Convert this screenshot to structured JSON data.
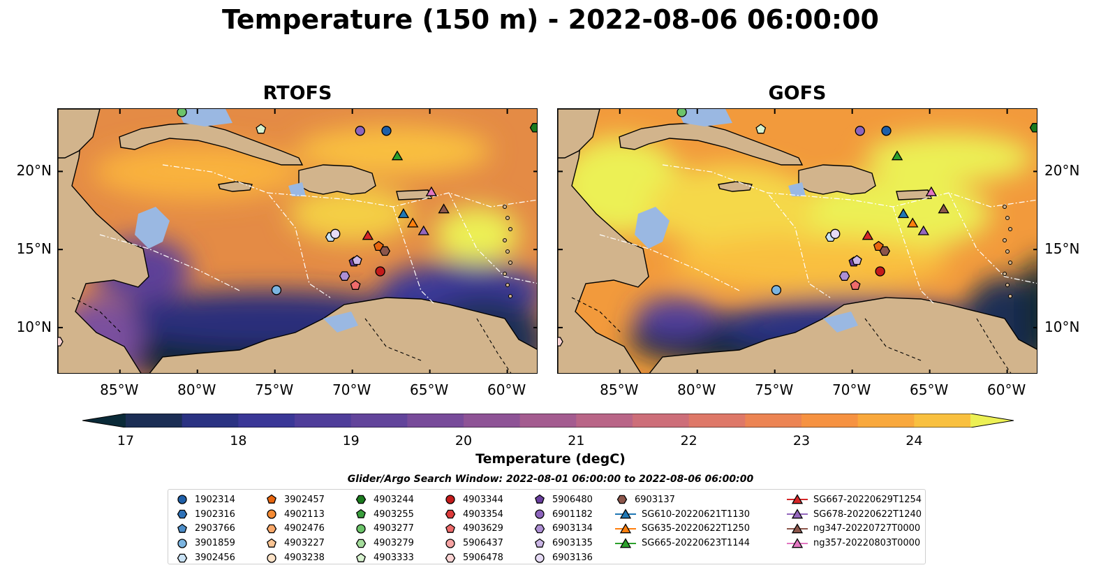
{
  "title": "Temperature (150 m) - 2022-08-06 06:00:00",
  "panels": [
    {
      "title": "RTOFS"
    },
    {
      "title": "GOFS"
    }
  ],
  "map": {
    "lon_range": [
      -89,
      -58
    ],
    "lat_range": [
      7,
      24
    ],
    "lon_ticks": [
      -85,
      -80,
      -75,
      -70,
      -65,
      -60
    ],
    "lon_labels": [
      "85°W",
      "80°W",
      "75°W",
      "70°W",
      "65°W",
      "60°W"
    ],
    "lat_ticks": [
      10,
      15,
      20
    ],
    "lat_labels": [
      "10°N",
      "15°N",
      "20°N"
    ],
    "colors": {
      "land": "#d2b48c",
      "shallow": "#9ab8e2",
      "ocean_warm": "#f7a13a",
      "ocean_cold": "#0b2533",
      "ocean_hot": "#e9f353"
    }
  },
  "colorbar": {
    "label": "Temperature (degC)",
    "min": 17,
    "max": 24.5,
    "step": 0.5,
    "ticks": [
      17,
      18,
      19,
      20,
      21,
      22,
      23,
      24
    ],
    "tick_labels": [
      "17",
      "18",
      "19",
      "20",
      "21",
      "22",
      "23",
      "24"
    ],
    "colors": [
      "#0a2a38",
      "#1b2e55",
      "#2a3282",
      "#3a3797",
      "#4f3d9a",
      "#62449b",
      "#784b9a",
      "#8e5396",
      "#a45c90",
      "#b96587",
      "#cd6e79",
      "#de7868",
      "#ec8453",
      "#f69241",
      "#f9a83c",
      "#f9c03f",
      "#f5d84a",
      "#ecf055"
    ]
  },
  "search_window": "Glider/Argo Search Window: 2022-08-01 06:00:00 to 2022-08-06 06:00:00",
  "legend": {
    "columns": [
      [
        {
          "label": "1902314",
          "marker": "circle",
          "color": "#1f5fa8"
        },
        {
          "label": "1902316",
          "marker": "hexagon",
          "color": "#2f72b8"
        },
        {
          "label": "2903766",
          "marker": "pentagon",
          "color": "#4d8ec9"
        },
        {
          "label": "3901859",
          "marker": "circle",
          "color": "#7bb4e0"
        },
        {
          "label": "3902456",
          "marker": "hexagon",
          "color": "#c9e2f5"
        }
      ],
      [
        {
          "label": "3902457",
          "marker": "pentagon",
          "color": "#e8660f"
        },
        {
          "label": "4902113",
          "marker": "circle",
          "color": "#f58b34"
        },
        {
          "label": "4902476",
          "marker": "hexagon",
          "color": "#f9a86a"
        },
        {
          "label": "4903227",
          "marker": "pentagon",
          "color": "#fbc594"
        },
        {
          "label": "4903238",
          "marker": "circle",
          "color": "#fde3c8"
        }
      ],
      [
        {
          "label": "4903244",
          "marker": "hexagon",
          "color": "#1b7a1e"
        },
        {
          "label": "4903255",
          "marker": "pentagon",
          "color": "#3a9f3d"
        },
        {
          "label": "4903277",
          "marker": "circle",
          "color": "#6cc46a"
        },
        {
          "label": "4903279",
          "marker": "hexagon",
          "color": "#a5dd9c"
        },
        {
          "label": "4903333",
          "marker": "pentagon",
          "color": "#d7f2cf"
        }
      ],
      [
        {
          "label": "4903344",
          "marker": "circle",
          "color": "#c41b1b"
        },
        {
          "label": "4903354",
          "marker": "hexagon",
          "color": "#dc3b3b"
        },
        {
          "label": "4903629",
          "marker": "pentagon",
          "color": "#ee6b6b"
        },
        {
          "label": "5906437",
          "marker": "circle",
          "color": "#f6a3a3"
        },
        {
          "label": "5906478",
          "marker": "hexagon",
          "color": "#fbd3d3"
        }
      ],
      [
        {
          "label": "5906480",
          "marker": "pentagon",
          "color": "#6a3f9e"
        },
        {
          "label": "6901182",
          "marker": "circle",
          "color": "#8d64bd"
        },
        {
          "label": "6903134",
          "marker": "hexagon",
          "color": "#ad8fd3"
        },
        {
          "label": "6903135",
          "marker": "pentagon",
          "color": "#cbb6e6"
        },
        {
          "label": "6903136",
          "marker": "circle",
          "color": "#e6dbf5"
        }
      ],
      [
        {
          "label": "6903137",
          "marker": "hexagon",
          "color": "#8c564b"
        },
        {
          "label": "SG610-20220621T1130",
          "marker": "triangle-line",
          "color": "#1f77b4"
        },
        {
          "label": "SG635-20220622T1250",
          "marker": "triangle-line",
          "color": "#ff7f0e"
        },
        {
          "label": "SG665-20220623T1144",
          "marker": "triangle-line",
          "color": "#2ca02c"
        }
      ],
      [
        {
          "label": "SG667-20220629T1254",
          "marker": "triangle-line",
          "color": "#d62728"
        },
        {
          "label": "SG678-20220622T1240",
          "marker": "triangle-line",
          "color": "#9467bd"
        },
        {
          "label": "ng347-20220727T0000",
          "marker": "triangle-line",
          "color": "#8c564b"
        },
        {
          "label": "ng357-20220803T0000",
          "marker": "triangle-line",
          "color": "#e377c2"
        }
      ]
    ]
  },
  "points": [
    {
      "label": "1902314",
      "lon": -67.8,
      "lat": 22.6,
      "marker": "circle",
      "color": "#1f5fa8"
    },
    {
      "label": "3901859",
      "lon": -74.9,
      "lat": 12.4,
      "marker": "circle",
      "color": "#7bb4e0"
    },
    {
      "label": "3902456",
      "lon": -71.4,
      "lat": 15.8,
      "marker": "hexagon",
      "color": "#c9e2f5"
    },
    {
      "label": "3902457",
      "lon": -68.3,
      "lat": 15.2,
      "marker": "pentagon",
      "color": "#e8660f"
    },
    {
      "label": "4903244",
      "lon": -58.2,
      "lat": 22.8,
      "marker": "hexagon",
      "color": "#1b7a1e"
    },
    {
      "label": "4903277",
      "lon": -81.0,
      "lat": 23.8,
      "marker": "circle",
      "color": "#6cc46a"
    },
    {
      "label": "4903333",
      "lon": -75.9,
      "lat": 22.7,
      "marker": "pentagon",
      "color": "#d7f2cf"
    },
    {
      "label": "4903344",
      "lon": -68.2,
      "lat": 13.6,
      "marker": "circle",
      "color": "#c41b1b"
    },
    {
      "label": "4903629",
      "lon": -69.8,
      "lat": 12.7,
      "marker": "pentagon",
      "color": "#ee6b6b"
    },
    {
      "label": "5906478",
      "lon": -89.0,
      "lat": 9.1,
      "marker": "hexagon",
      "color": "#fbd3d3"
    },
    {
      "label": "5906480",
      "lon": -69.9,
      "lat": 14.2,
      "marker": "pentagon",
      "color": "#6a3f9e"
    },
    {
      "label": "6901182",
      "lon": -69.5,
      "lat": 22.6,
      "marker": "circle",
      "color": "#8d64bd"
    },
    {
      "label": "6903134",
      "lon": -70.5,
      "lat": 13.3,
      "marker": "hexagon",
      "color": "#ad8fd3"
    },
    {
      "label": "6903135",
      "lon": -69.7,
      "lat": 14.3,
      "marker": "pentagon",
      "color": "#cbb6e6"
    },
    {
      "label": "6903136",
      "lon": -71.1,
      "lat": 16.0,
      "marker": "circle",
      "color": "#e6dbf5"
    },
    {
      "label": "6903137",
      "lon": -67.9,
      "lat": 14.9,
      "marker": "hexagon",
      "color": "#8c564b"
    },
    {
      "label": "SG610-20220621T1130",
      "lon": -66.7,
      "lat": 17.3,
      "marker": "triangle",
      "color": "#1f77b4"
    },
    {
      "label": "SG635-20220622T1250",
      "lon": -66.1,
      "lat": 16.7,
      "marker": "triangle",
      "color": "#ff7f0e"
    },
    {
      "label": "SG665-20220623T1144",
      "lon": -67.1,
      "lat": 21.0,
      "marker": "triangle",
      "color": "#2ca02c"
    },
    {
      "label": "SG667-20220629T1254",
      "lon": -69.0,
      "lat": 15.9,
      "marker": "triangle",
      "color": "#d62728"
    },
    {
      "label": "SG678-20220622T1240",
      "lon": -65.4,
      "lat": 16.2,
      "marker": "triangle",
      "color": "#9467bd"
    },
    {
      "label": "ng347-20220727T0000",
      "lon": -64.1,
      "lat": 17.6,
      "marker": "triangle",
      "color": "#8c564b"
    },
    {
      "label": "ng357-20220803T0000",
      "lon": -64.9,
      "lat": 18.7,
      "marker": "triangle",
      "color": "#e377c2"
    }
  ]
}
